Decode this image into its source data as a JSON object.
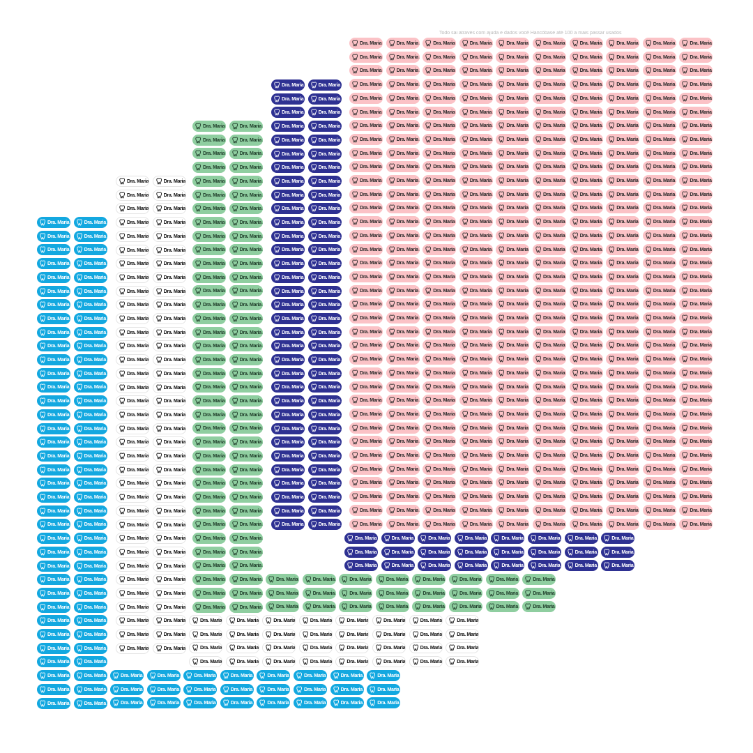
{
  "header": {
    "note": "Todo sai através com ajuda e dados você Hancóbase até 100 a mais passar usados"
  },
  "label": {
    "text": "Dra. Maria Alice",
    "icon": "tooth-icon"
  },
  "sheets": [
    {
      "id": "pink-sheet",
      "background": "#fbc2c6",
      "text_color": "#2b2b2b",
      "label_count": 700
    },
    {
      "id": "navy-sheet",
      "background": "#2e3192",
      "text_color": "#ffffff",
      "label_count": 94
    },
    {
      "id": "green-sheet",
      "background": "#8fcea0",
      "text_color": "#1f3d2a",
      "label_count": 110
    },
    {
      "id": "white-sheet",
      "background": "#ffffff",
      "text_color": "#111111",
      "label_count": 120
    },
    {
      "id": "cyan-sheet",
      "background": "#13a8e0",
      "text_color": "#ffffff",
      "label_count": 112
    }
  ]
}
